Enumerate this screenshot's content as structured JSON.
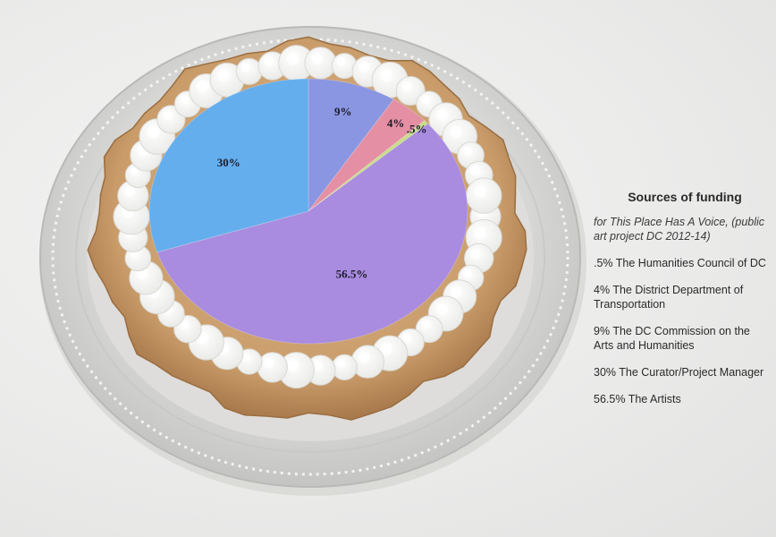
{
  "chart_data": {
    "type": "pie",
    "title": "Sources of funding",
    "subtitle": "for This Place Has A Voice, (public art project DC 2012-14)",
    "slices": [
      {
        "label": "The DC Commission on the Arts and Humanities",
        "value": 9,
        "data_label": "9%",
        "color": "#8a96e2"
      },
      {
        "label": "The District Department of Transportation",
        "value": 4,
        "data_label": "4%",
        "color": "#e48fa3"
      },
      {
        "label": "The Humanities Council of DC",
        "value": 0.5,
        "data_label": ".5%",
        "color": "#c8dc8a"
      },
      {
        "label": "The Artists",
        "value": 56.5,
        "data_label": "56.5%",
        "color": "#a98ce0"
      },
      {
        "label": "The Curator/Project Manager",
        "value": 30,
        "data_label": "30%",
        "color": "#64aeee"
      }
    ],
    "legend_placement": "right"
  },
  "legend": {
    "heading": "Sources of funding",
    "subtitle": "for This Place Has A Voice, (public art project DC 2012-14)",
    "entries": [
      ".5% The Humanities Council of DC",
      "4% The District Department of Transportation",
      "9% The DC Commission on the Arts and Humanities",
      "30% The Curator/Project Manager",
      "56.5% The Artists"
    ]
  }
}
